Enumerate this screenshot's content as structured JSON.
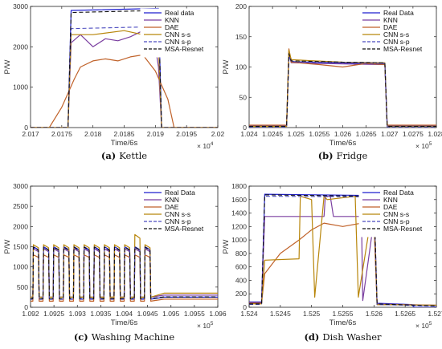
{
  "chart_data": [
    {
      "type": "line",
      "panel_label": "(a)",
      "caption": "Kettle",
      "xlabel": "Time/6s",
      "ylabel": "P/W",
      "xlim": [
        2.017,
        2.02
      ],
      "ylim": [
        0,
        3000
      ],
      "x_multiplier": "× 10^4",
      "x_ticks": [
        "2.017",
        "2.0175",
        "2.018",
        "2.0185",
        "2.019",
        "2.0195",
        "2.02"
      ],
      "y_ticks": [
        "0",
        "1000",
        "2000",
        "3000"
      ],
      "legend": [
        "Real data",
        "KNN",
        "DAE",
        "CNN s-s",
        "CNN s-p",
        "MSA-Resnet"
      ],
      "legend_position": "top-right",
      "series": [
        {
          "name": "Real data",
          "color": "#1f1fcf",
          "dash": "solid",
          "x": [
            2.017,
            2.0176,
            2.01765,
            2.01905,
            2.0191,
            2.02
          ],
          "y": [
            0,
            0,
            2900,
            2950,
            0,
            0
          ]
        },
        {
          "name": "KNN",
          "color": "#7b3fa0",
          "dash": "solid",
          "x": [
            2.017,
            2.0176,
            2.01765,
            2.0178,
            2.018,
            2.0182,
            2.0184,
            2.0186,
            2.0188,
            2.019,
            2.01905,
            2.0191,
            2.02
          ],
          "y": [
            0,
            0,
            2100,
            2300,
            2000,
            2200,
            2150,
            2250,
            2400,
            2000,
            1500,
            0,
            0
          ]
        },
        {
          "name": "DAE",
          "color": "#c0622a",
          "dash": "solid",
          "x": [
            2.017,
            2.0173,
            2.0175,
            2.0177,
            2.0178,
            2.018,
            2.0182,
            2.0184,
            2.0186,
            2.0188,
            2.019,
            2.0192,
            2.0193,
            2.02
          ],
          "y": [
            0,
            0,
            500,
            1200,
            1500,
            1650,
            1700,
            1650,
            1750,
            1800,
            1400,
            700,
            0,
            0
          ]
        },
        {
          "name": "CNN s-s",
          "color": "#b8860b",
          "dash": "solid",
          "x": [
            2.017,
            2.0176,
            2.01765,
            2.018,
            2.0185,
            2.0188,
            2.019,
            2.01905,
            2.0191,
            2.02
          ],
          "y": [
            0,
            0,
            2300,
            2300,
            2400,
            2300,
            2350,
            2000,
            0,
            0
          ]
        },
        {
          "name": "CNN s-p",
          "color": "#4b4bbf",
          "dash": "dashed",
          "x": [
            2.017,
            2.0176,
            2.01765,
            2.01905,
            2.0191,
            2.02
          ],
          "y": [
            0,
            0,
            2450,
            2500,
            0,
            0
          ]
        },
        {
          "name": "MSA-Resnet",
          "color": "#111111",
          "dash": "dashed",
          "x": [
            2.017,
            2.0176,
            2.01765,
            2.01905,
            2.0191,
            2.02
          ],
          "y": [
            0,
            0,
            2850,
            2900,
            0,
            0
          ]
        }
      ]
    },
    {
      "type": "line",
      "panel_label": "(b)",
      "caption": "Fridge",
      "xlabel": "Time/6s",
      "ylabel": "P/W",
      "xlim": [
        1.024,
        1.028
      ],
      "ylim": [
        0,
        200
      ],
      "x_multiplier": "× 10^5",
      "x_ticks": [
        "1.024",
        "1.0245",
        "1.025",
        "1.0255",
        "1.026",
        "1.0265",
        "1.027",
        "1.0275",
        "1.028"
      ],
      "y_ticks": [
        "0",
        "50",
        "100",
        "150",
        "200"
      ],
      "legend": [
        "Real Data",
        "KNN",
        "DAE",
        "CNN s-s",
        "CNN s-p",
        "MSA-Resnet"
      ],
      "legend_position": "top-right",
      "series": [
        {
          "name": "Real Data",
          "color": "#1f1fcf",
          "dash": "solid",
          "x": [
            1.024,
            1.0248,
            1.02485,
            1.0249,
            1.025,
            1.026,
            1.0269,
            1.02695,
            1.028
          ],
          "y": [
            3,
            3,
            125,
            110,
            108,
            106,
            105,
            3,
            3
          ]
        },
        {
          "name": "KNN",
          "color": "#7b3fa0",
          "dash": "solid",
          "x": [
            1.024,
            1.0248,
            1.02485,
            1.0249,
            1.026,
            1.0269,
            1.02695,
            1.028
          ],
          "y": [
            2,
            2,
            120,
            107,
            105,
            104,
            2,
            2
          ]
        },
        {
          "name": "DAE",
          "color": "#c0622a",
          "dash": "solid",
          "x": [
            1.024,
            1.0248,
            1.02485,
            1.0249,
            1.0255,
            1.026,
            1.0265,
            1.0269,
            1.02695,
            1.028
          ],
          "y": [
            4,
            4,
            130,
            108,
            104,
            100,
            106,
            104,
            4,
            4
          ]
        },
        {
          "name": "CNN s-s",
          "color": "#b8860b",
          "dash": "solid",
          "x": [
            1.024,
            1.0248,
            1.02485,
            1.0249,
            1.026,
            1.0269,
            1.02695,
            1.028
          ],
          "y": [
            2,
            2,
            128,
            112,
            108,
            107,
            2,
            2
          ]
        },
        {
          "name": "CNN s-p",
          "color": "#4b4bbf",
          "dash": "dashed",
          "x": [
            1.024,
            1.0248,
            1.02485,
            1.0249,
            1.026,
            1.0269,
            1.02695,
            1.028
          ],
          "y": [
            1,
            1,
            118,
            109,
            107,
            106,
            1,
            1
          ]
        },
        {
          "name": "MSA-Resnet",
          "color": "#111111",
          "dash": "dashed",
          "x": [
            1.024,
            1.0248,
            1.02485,
            1.0249,
            1.026,
            1.0269,
            1.02695,
            1.028
          ],
          "y": [
            2,
            2,
            122,
            110,
            108,
            107,
            2,
            2
          ]
        }
      ]
    },
    {
      "type": "line",
      "panel_label": "(c)",
      "caption": "Washing Machine",
      "xlabel": "Time/6s",
      "ylabel": "P/W",
      "xlim": [
        1.092,
        1.096
      ],
      "ylim": [
        0,
        3000
      ],
      "x_multiplier": "× 10^5",
      "x_ticks": [
        "1.092",
        "1.0925",
        "1.093",
        "1.0935",
        "1.094",
        "1.0945",
        "1.095",
        "1.0955",
        "1.096"
      ],
      "y_ticks": [
        "0",
        "500",
        "1000",
        "1500",
        "2000",
        "2500",
        "3000"
      ],
      "legend": [
        "Real Data",
        "KNN",
        "DAE",
        "CNN s-s",
        "CNN s-p",
        "MSA-Resnet"
      ],
      "legend_position": "top-right",
      "series": [
        {
          "name": "Real Data",
          "color": "#1f1fcf",
          "dash": "solid",
          "pattern": "square-pulses",
          "cycles": 12,
          "x_start": 1.09205,
          "x_end": 1.09465,
          "high": 1500,
          "low": 200,
          "tail": 250
        },
        {
          "name": "KNN",
          "color": "#7b3fa0",
          "dash": "solid",
          "pattern": "square-pulses",
          "cycles": 12,
          "x_start": 1.09205,
          "x_end": 1.09465,
          "high": 1450,
          "low": 250,
          "tail": 300
        },
        {
          "name": "DAE",
          "color": "#c0622a",
          "dash": "solid",
          "pattern": "square-pulses",
          "cycles": 12,
          "x_start": 1.09205,
          "x_end": 1.09465,
          "high": 1300,
          "low": 150,
          "tail": 200
        },
        {
          "name": "CNN s-s",
          "color": "#b8860b",
          "dash": "solid",
          "pattern": "square-pulses",
          "cycles": 12,
          "x_start": 1.09205,
          "x_end": 1.09465,
          "high": 1550,
          "low": 250,
          "tail": 350,
          "peak": 1800
        },
        {
          "name": "CNN s-p",
          "color": "#4b4bbf",
          "dash": "dashed",
          "pattern": "square-pulses",
          "cycles": 12,
          "x_start": 1.09205,
          "x_end": 1.09465,
          "high": 1480,
          "low": 220,
          "tail": 260
        },
        {
          "name": "MSA-Resnet",
          "color": "#111111",
          "dash": "dashed",
          "pattern": "square-pulses",
          "cycles": 12,
          "x_start": 1.09205,
          "x_end": 1.09465,
          "high": 1490,
          "low": 210,
          "tail": 255
        }
      ]
    },
    {
      "type": "line",
      "panel_label": "(d)",
      "caption": "Dish Washer",
      "xlabel": "Time/6s",
      "ylabel": "P/W",
      "xlim": [
        1.524,
        1.527
      ],
      "ylim": [
        0,
        1800
      ],
      "x_multiplier": "× 10^5",
      "x_ticks": [
        "1.524",
        "1.5245",
        "1.525",
        "1.5255",
        "1.526",
        "1.5265",
        "1.527"
      ],
      "y_ticks": [
        "0",
        "200",
        "400",
        "600",
        "800",
        "1000",
        "1200",
        "1400",
        "1600",
        "1800"
      ],
      "legend": [
        "Real Data",
        "KNN",
        "DAE",
        "CNN s-s",
        "CNN s-p",
        "MSA-Resnet"
      ],
      "legend_position": "top-right",
      "series": [
        {
          "name": "Real Data",
          "color": "#1f1fcf",
          "dash": "solid",
          "x": [
            1.524,
            1.5242,
            1.52425,
            1.526,
            1.52605,
            1.5266,
            1.52665,
            1.527
          ],
          "y": [
            80,
            80,
            1680,
            1660,
            60,
            40,
            0,
            0
          ]
        },
        {
          "name": "KNN",
          "color": "#7b3fa0",
          "dash": "solid",
          "x": [
            1.524,
            1.5242,
            1.52425,
            1.5252,
            1.52522,
            1.5253,
            1.52535,
            1.5258,
            1.52582,
            1.526,
            1.52605,
            1.527
          ],
          "y": [
            70,
            70,
            1350,
            1350,
            1650,
            1650,
            1350,
            1350,
            100,
            1300,
            50,
            30
          ]
        },
        {
          "name": "DAE",
          "color": "#c0622a",
          "dash": "solid",
          "x": [
            1.524,
            1.5242,
            1.52425,
            1.5245,
            1.5248,
            1.525,
            1.5252,
            1.5255,
            1.5258,
            1.526,
            1.52605,
            1.527
          ],
          "y": [
            60,
            60,
            500,
            800,
            1000,
            1150,
            1250,
            1200,
            1250,
            1300,
            40,
            30
          ]
        },
        {
          "name": "CNN s-s",
          "color": "#b8860b",
          "dash": "solid",
          "x": [
            1.524,
            1.5242,
            1.52425,
            1.5248,
            1.52482,
            1.525,
            1.52505,
            1.5252,
            1.52525,
            1.5257,
            1.52575,
            1.526,
            1.52605,
            1.527
          ],
          "y": [
            50,
            50,
            700,
            720,
            1650,
            1600,
            150,
            1650,
            1600,
            1650,
            150,
            1600,
            40,
            30
          ]
        },
        {
          "name": "CNN s-p",
          "color": "#4b4bbf",
          "dash": "dashed",
          "x": [
            1.524,
            1.5242,
            1.52425,
            1.526,
            1.52605,
            1.527
          ],
          "y": [
            40,
            40,
            1650,
            1640,
            40,
            20
          ]
        },
        {
          "name": "MSA-Resnet",
          "color": "#111111",
          "dash": "dashed",
          "x": [
            1.524,
            1.5242,
            1.52425,
            1.526,
            1.52605,
            1.527
          ],
          "y": [
            50,
            50,
            1670,
            1650,
            50,
            20
          ]
        }
      ]
    }
  ]
}
